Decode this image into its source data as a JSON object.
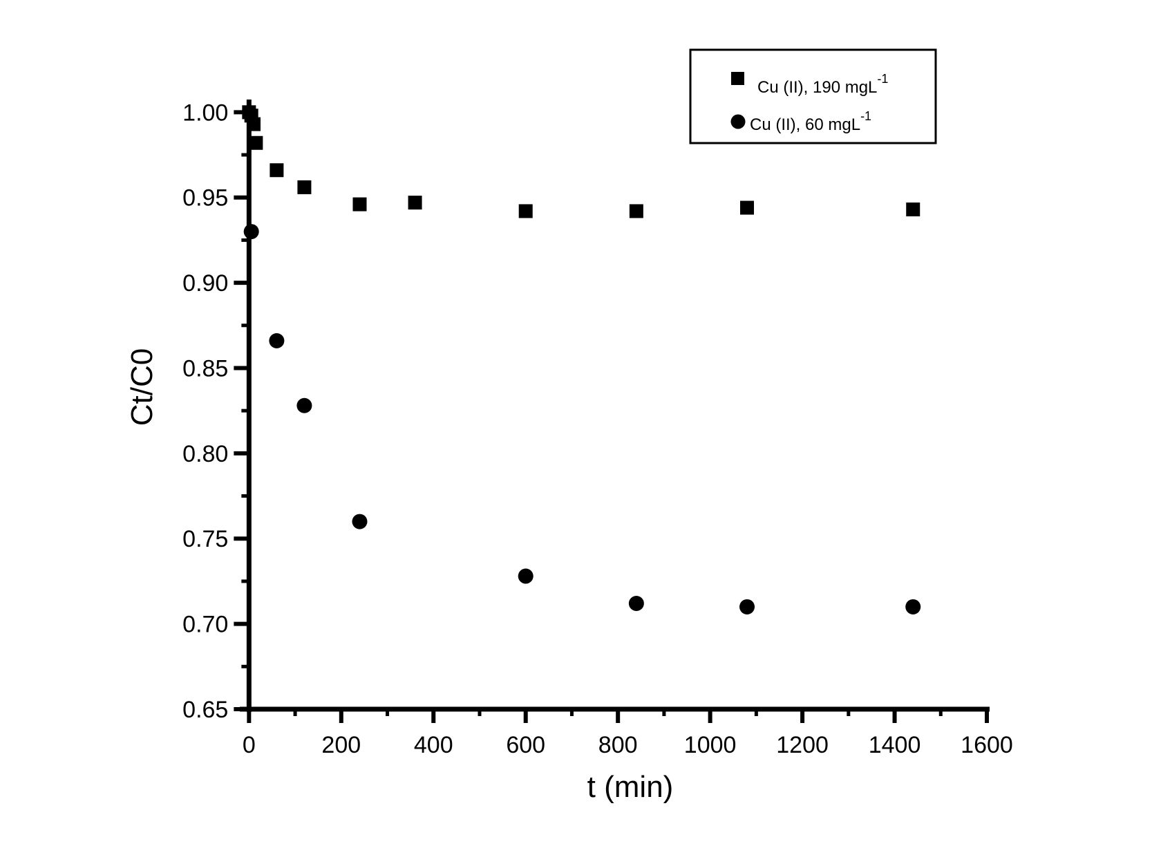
{
  "chart_data": {
    "type": "scatter",
    "xlabel": "t (min)",
    "ylabel": "Ct/C0",
    "xlim": [
      -20,
      1600
    ],
    "ylim": [
      0.65,
      1.005
    ],
    "xticks": [
      0,
      200,
      400,
      600,
      800,
      1000,
      1200,
      1400,
      1600
    ],
    "xtick_labels": [
      "0",
      "200",
      "400",
      "600",
      "800",
      "1000",
      "1200",
      "1400",
      "1600"
    ],
    "yticks": [
      0.65,
      0.7,
      0.75,
      0.8,
      0.85,
      0.9,
      0.95,
      1.0
    ],
    "ytick_labels": [
      "0.65",
      "0.70",
      "0.75",
      "0.80",
      "0.85",
      "0.90",
      "0.95",
      "1.00"
    ],
    "grid": false,
    "legend_position": "top-right",
    "series": [
      {
        "name": "Cu (II), 190 mgL",
        "name_sup": "-1",
        "marker": "square",
        "color": "#000000",
        "x": [
          0,
          5,
          10,
          15,
          60,
          120,
          240,
          360,
          600,
          840,
          1080,
          1440
        ],
        "y": [
          1.0,
          0.998,
          0.993,
          0.982,
          0.966,
          0.956,
          0.946,
          0.947,
          0.942,
          0.942,
          0.944,
          0.943
        ]
      },
      {
        "name": "Cu (II), 60 mgL",
        "name_sup": "-1",
        "marker": "circle",
        "color": "#000000",
        "x": [
          5,
          60,
          120,
          240,
          600,
          840,
          1080,
          1440
        ],
        "y": [
          0.93,
          0.866,
          0.828,
          0.76,
          0.728,
          0.712,
          0.71,
          0.71
        ]
      }
    ]
  }
}
